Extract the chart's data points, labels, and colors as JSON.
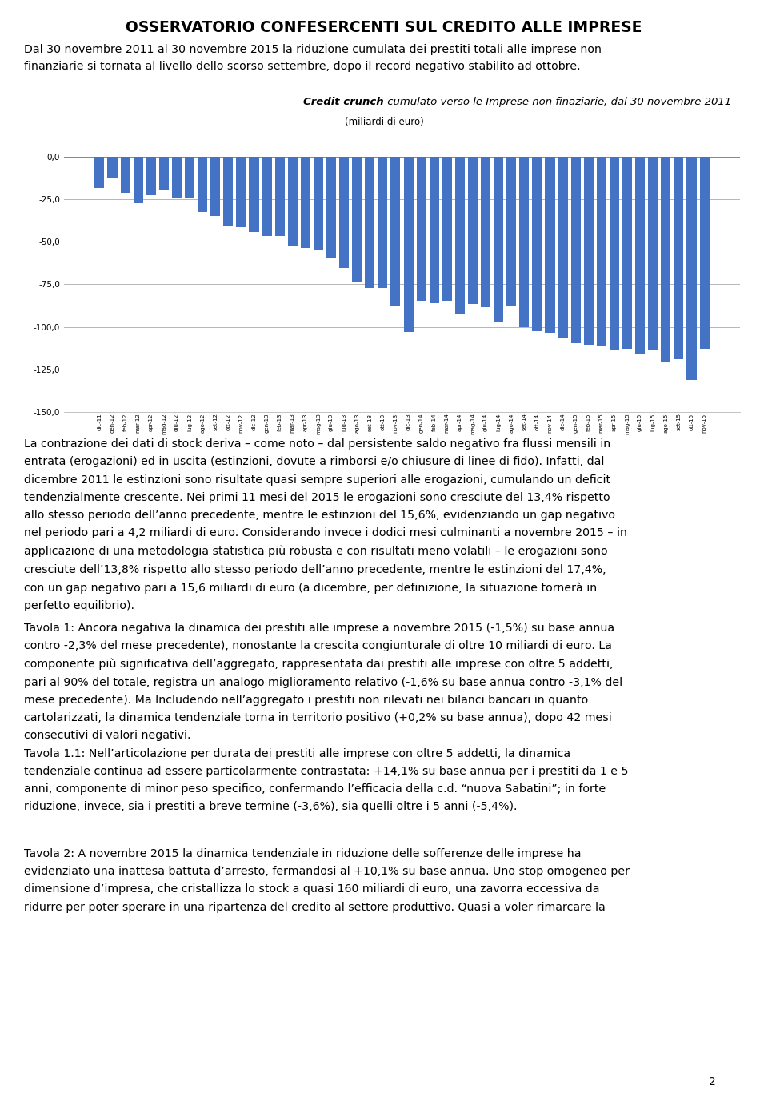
{
  "title_main": "OSSERVATORIO CONFESERCENTI SUL CREDITO ALLE IMPRESE",
  "intro_line1": "Dal 30 novembre 2011 al 30 novembre 2015 la riduzione cumulata dei prestiti totali alle imprese non",
  "intro_line2": "finanziarie si tornata al livello dello scorso settembre, dopo il record negativo stabilito ad ottobre.",
  "chart_title_italic": "Credit crunch",
  "chart_title_rest": " cumulato verso le Imprese non finaziarie, dal 30 novembre 2011",
  "chart_title_sub": "(miliardi di euro)",
  "bar_color": "#4472C4",
  "ylim": [
    -150,
    5
  ],
  "yticks": [
    0,
    -25,
    -50,
    -75,
    -100,
    -125,
    -150
  ],
  "ytick_labels": [
    "0,0",
    "-25,0",
    "-50,0",
    "-75,0",
    "-100,0",
    "-125,0",
    "-150,0"
  ],
  "categories": [
    "dic-11",
    "gen-12",
    "feb-12",
    "mar-12",
    "apr-12",
    "mag-12",
    "giu-12",
    "lug-12",
    "ago-12",
    "set-12",
    "ott-12",
    "nov-12",
    "dic-12",
    "gen-13",
    "feb-13",
    "mar-13",
    "apr-13",
    "mag-13",
    "giu-13",
    "lug-13",
    "ago-13",
    "set-13",
    "ott-13",
    "nov-13",
    "dic-13",
    "gen-14",
    "feb-14",
    "mar-14",
    "apr-14",
    "mag-14",
    "giu-14",
    "lug-14",
    "ago-14",
    "set-14",
    "ott-14",
    "nov-14",
    "dic-14",
    "gen-15",
    "feb-15",
    "mar-15",
    "apr-15",
    "mag-15",
    "giu-15",
    "lug-15",
    "ago-15",
    "set-15",
    "ott-15",
    "nov-15"
  ],
  "values": [
    -18.5,
    -13.0,
    -21.5,
    -27.5,
    -22.5,
    -20.0,
    -24.0,
    -24.5,
    -32.5,
    -35.0,
    -41.0,
    -41.5,
    -44.5,
    -46.5,
    -46.5,
    -52.5,
    -53.5,
    -55.0,
    -60.0,
    -65.5,
    -73.5,
    -77.0,
    -77.0,
    -88.0,
    -103.0,
    -84.5,
    -86.0,
    -84.5,
    -92.5,
    -86.5,
    -88.5,
    -97.0,
    -87.5,
    -100.0,
    -102.5,
    -103.5,
    -107.0,
    -109.5,
    -110.5,
    -111.0,
    -113.5,
    -113.0,
    -115.5,
    -113.5,
    -120.5,
    -119.0,
    -131.0,
    -113.0
  ],
  "para1_lines": [
    "La contrazione dei dati di stock deriva – come noto – dal persistente saldo negativo fra flussi mensili in",
    "entrata (erogazioni) ed in uscita (estinzioni, dovute a rimborsi e/o chiusure di linee di fido). Infatti, dal",
    "dicembre 2011 le estinzioni sono risultate quasi sempre superiori alle erogazioni, cumulando un deficit",
    "tendenzialmente crescente. Nei primi 11 mesi del 2015 le erogazioni sono cresciute del 13,4% rispetto",
    "allo stesso periodo dell’anno precedente, mentre le estinzioni del 15,6%, evidenziando un gap negativo",
    "nel periodo pari a 4,2 miliardi di euro. Considerando invece i dodici mesi culminanti a novembre 2015 – in",
    "applicazione di una metodologia statistica più robusta e con risultati meno volatili – le erogazioni sono",
    "cresciute dell’13,8% rispetto allo stesso periodo dell’anno precedente, mentre le estinzioni del 17,4%,",
    "con un gap negativo pari a 15,6 miliardi di euro (a dicembre, per definizione, la situazione tornerà in",
    "perfetto equilibrio)."
  ],
  "para2_lines": [
    "Tavola 1: Ancora negativa la dinamica dei prestiti alle imprese a novembre 2015 (-1,5%) su base annua",
    "contro -2,3% del mese precedente), nonostante la crescita congiunturale di oltre 10 miliardi di euro. La",
    "componente più significativa dell’aggregato, rappresentata dai prestiti alle imprese con oltre 5 addetti,",
    "pari al 90% del totale, registra un analogo miglioramento relativo (-1,6% su base annua contro -3,1% del",
    "mese precedente). Ma Includendo nell’aggregato i prestiti non rilevati nei bilanci bancari in quanto",
    "cartolarizzati, la dinamica tendenziale torna in territorio positivo (+0,2% su base annua), dopo 42 mesi",
    "consecutivi di valori negativi.",
    "Tavola 1.1: Nell’articolazione per durata dei prestiti alle imprese con oltre 5 addetti, la dinamica",
    "tendenziale continua ad essere particolarmente contrastata: +14,1% su base annua per i prestiti da 1 e 5",
    "anni, componente di minor peso specifico, confermando l’efficacia della c.d. “nuova Sabatini”; in forte",
    "riduzione, invece, sia i prestiti a breve termine (-3,6%), sia quelli oltre i 5 anni (-5,4%)."
  ],
  "para3_lines": [
    "Tavola 2: A novembre 2015 la dinamica tendenziale in riduzione delle sofferenze delle imprese ha",
    "evidenziato una inattesa battuta d’arresto, fermandosi al +10,1% su base annua. Uno stop omogeneo per",
    "dimensione d’impresa, che cristallizza lo stock a quasi 160 miliardi di euro, una zavorra eccessiva da",
    "ridurre per poter sperare in una ripartenza del credito al settore produttivo. Quasi a voler rimarcare la"
  ],
  "page_number": "2"
}
